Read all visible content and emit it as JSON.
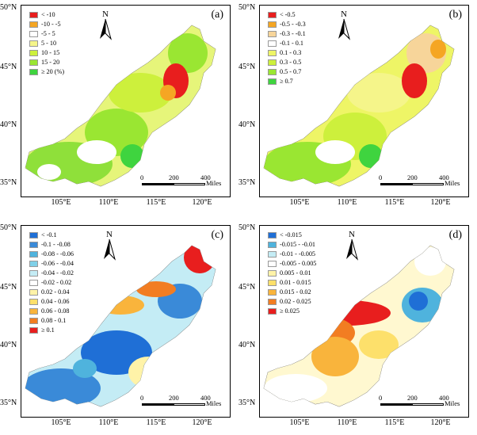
{
  "axes": {
    "y_labels": [
      "50°N",
      "45°N",
      "40°N",
      "35°N"
    ],
    "x_labels": [
      "105°E",
      "110°E",
      "115°E",
      "120°E"
    ]
  },
  "north_label": "N",
  "scale": {
    "labels": [
      "0",
      "200",
      "400"
    ],
    "unit": "Miles"
  },
  "panels": [
    {
      "label": "(a)",
      "legend": [
        {
          "text": "< -10",
          "color": "#e81e1e"
        },
        {
          "text": "-10 - -5",
          "color": "#f5a623"
        },
        {
          "text": "-5 - 5",
          "color": "#ffffff"
        },
        {
          "text": "5 - 10",
          "color": "#f5f58a"
        },
        {
          "text": "10 - 15",
          "color": "#cdf03c"
        },
        {
          "text": "15 - 20",
          "color": "#9ae632"
        },
        {
          "text": "≥ 20 (%)",
          "color": "#3fd43f"
        }
      ]
    },
    {
      "label": "(b)",
      "legend": [
        {
          "text": "< -0.5",
          "color": "#e81e1e"
        },
        {
          "text": "-0.5 - -0.3",
          "color": "#f5a623"
        },
        {
          "text": "-0.3 - -0.1",
          "color": "#f7d59a"
        },
        {
          "text": "-0.1 - 0.1",
          "color": "#ffffff"
        },
        {
          "text": "0.1 - 0.3",
          "color": "#eef566"
        },
        {
          "text": "0.3 - 0.5",
          "color": "#cdf03c"
        },
        {
          "text": "0.5 - 0.7",
          "color": "#9ae632"
        },
        {
          "text": "≥ 0.7",
          "color": "#3fd43f"
        }
      ]
    },
    {
      "label": "(c)",
      "legend": [
        {
          "text": "< -0.1",
          "color": "#1f6fd6"
        },
        {
          "text": "-0.1 - -0.08",
          "color": "#3a8ad8"
        },
        {
          "text": "-0.08 - -0.06",
          "color": "#4fb3dd"
        },
        {
          "text": "-0.06 - -0.04",
          "color": "#7fd0e8"
        },
        {
          "text": "-0.04 - -0.02",
          "color": "#c4ecf5"
        },
        {
          "text": "-0.02 - 0.02",
          "color": "#ffffff"
        },
        {
          "text": "0.02 - 0.04",
          "color": "#fff3a8"
        },
        {
          "text": "0.04 - 0.06",
          "color": "#fde06b"
        },
        {
          "text": "0.06 - 0.08",
          "color": "#f9b43c"
        },
        {
          "text": "0.08 - 0.1",
          "color": "#f27d22"
        },
        {
          "text": "≥ 0.1",
          "color": "#e81e1e"
        }
      ]
    },
    {
      "label": "(d)",
      "legend": [
        {
          "text": "< -0.015",
          "color": "#1f6fd6"
        },
        {
          "text": "-0.015 - -0.01",
          "color": "#4fb3dd"
        },
        {
          "text": "-0.01 - -0.005",
          "color": "#c4ecf5"
        },
        {
          "text": "-0.005 - 0.005",
          "color": "#ffffff"
        },
        {
          "text": "0.005 - 0.01",
          "color": "#fff3a8"
        },
        {
          "text": "0.01 - 0.015",
          "color": "#fde06b"
        },
        {
          "text": "0.015 - 0.02",
          "color": "#f9b43c"
        },
        {
          "text": "0.02 - 0.025",
          "color": "#f27d22"
        },
        {
          "text": "≥ 0.025",
          "color": "#e81e1e"
        }
      ]
    }
  ]
}
